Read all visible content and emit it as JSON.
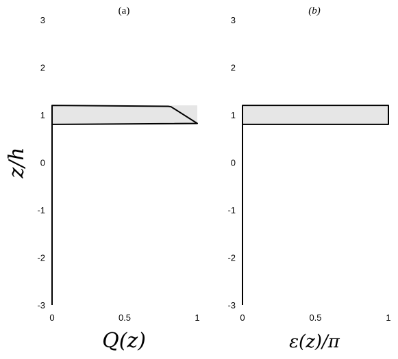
{
  "chart_data": [
    {
      "type": "line",
      "title": "(a)",
      "xlabel": "Q(z)",
      "ylabel": "z/h",
      "xlim": [
        0,
        1
      ],
      "ylim": [
        -3,
        3
      ],
      "xticks": [
        0,
        0.5,
        1
      ],
      "xtick_labels": [
        "0",
        "0.5",
        "1"
      ],
      "yticks": [
        -3,
        -2,
        -1,
        0,
        1,
        2,
        3
      ],
      "ytick_labels": [
        "-3",
        "-2",
        "-1",
        "0",
        "1",
        "2",
        "3"
      ],
      "grid": false,
      "band": {
        "y_min": 0.8,
        "y_max": 1.2,
        "color": "#e6e6e6"
      },
      "series": [
        {
          "x": [
            0,
            0,
            0.8,
            0.82,
            1.0,
            0.02,
            0,
            0
          ],
          "y": [
            -3,
            1.2,
            1.18,
            1.17,
            0.82,
            0.8,
            0.8,
            -3
          ],
          "color": "#000000"
        }
      ]
    },
    {
      "type": "line",
      "title": "(b)",
      "xlabel": "ε(z)/π",
      "ylabel": "",
      "xlim": [
        0,
        1
      ],
      "ylim": [
        -3,
        3
      ],
      "xticks": [
        0,
        0.5,
        1
      ],
      "xtick_labels": [
        "0",
        "0.5",
        "1"
      ],
      "yticks": [
        -3,
        -2,
        -1,
        0,
        1,
        2,
        3
      ],
      "ytick_labels": [
        "-3",
        "-2",
        "-1",
        "0",
        "1",
        "2",
        "3"
      ],
      "grid": false,
      "band": {
        "y_min": 0.8,
        "y_max": 1.2,
        "color": "#e6e6e6"
      },
      "series": [
        {
          "x": [
            0,
            0,
            1,
            1,
            0,
            0
          ],
          "y": [
            -3,
            1.2,
            1.2,
            0.8,
            0.8,
            -3
          ],
          "color": "#000000"
        }
      ]
    }
  ]
}
